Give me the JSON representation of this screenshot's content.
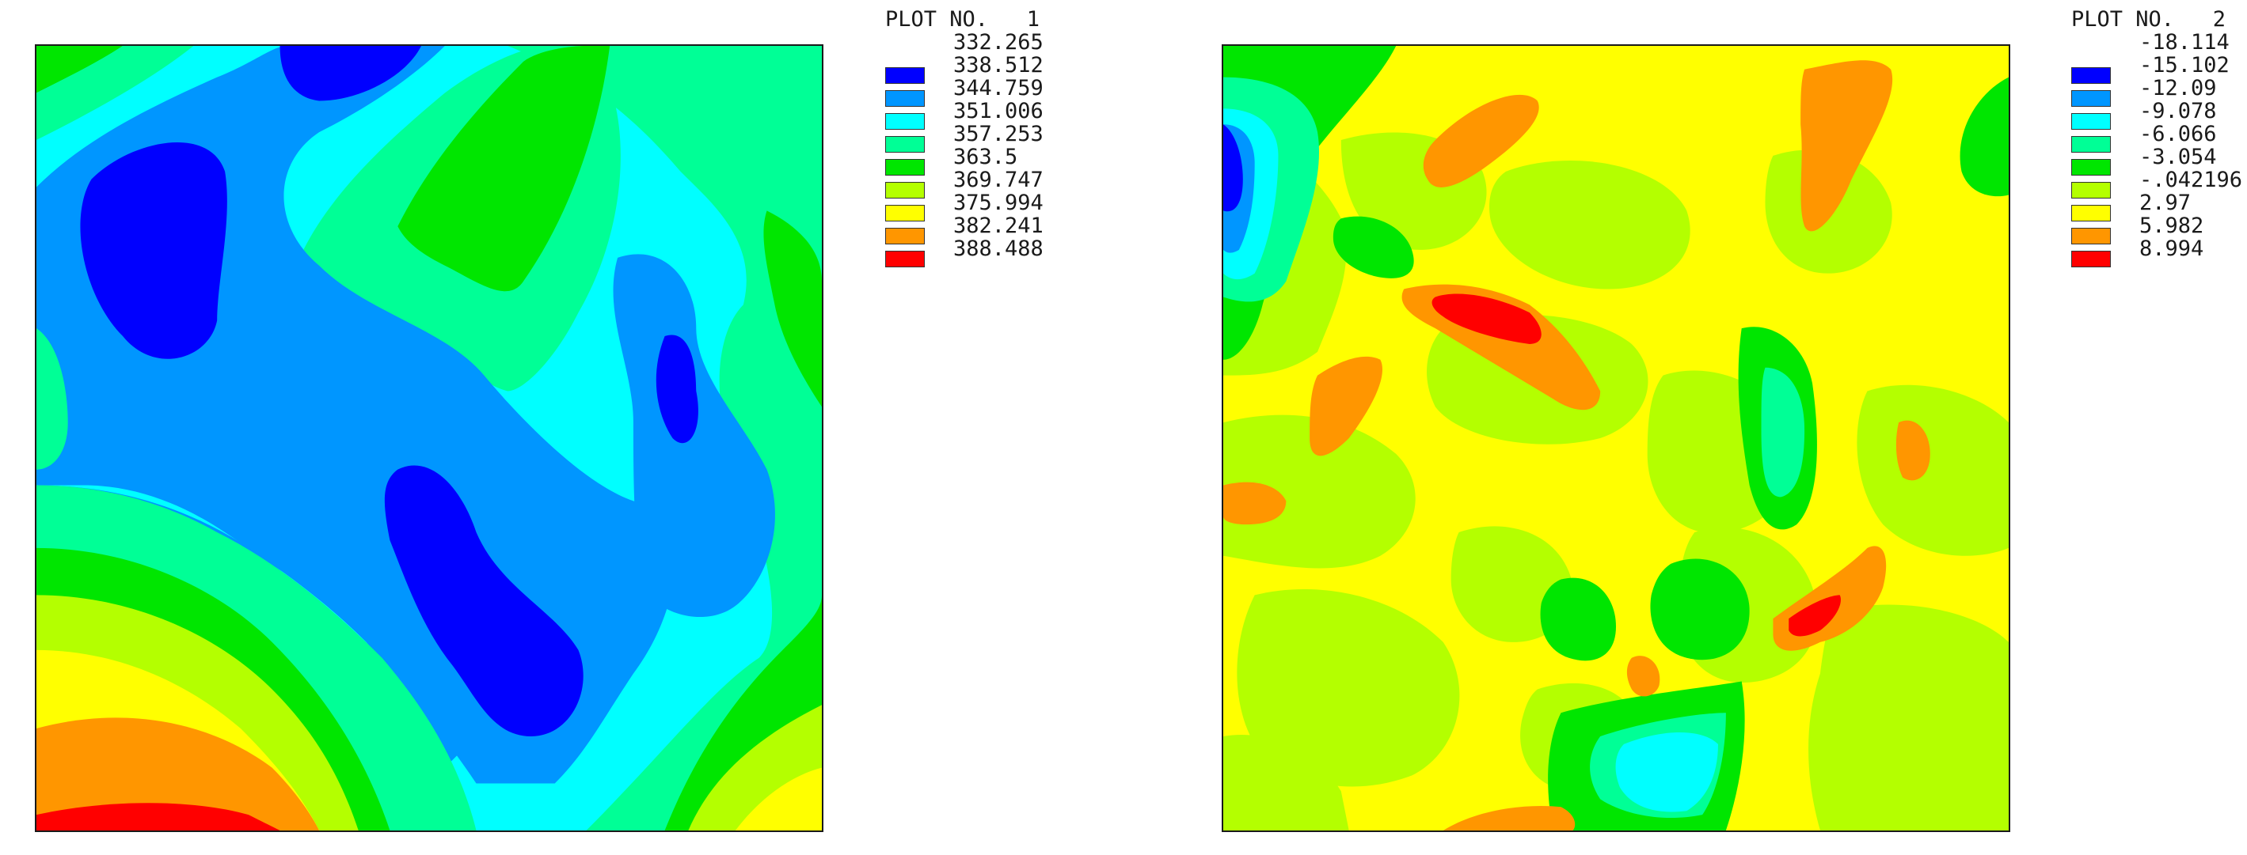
{
  "chart_data": [
    {
      "type": "heatmap",
      "plot_label": "PLOT NO.   1",
      "levels": [
        "332.265",
        "338.512",
        "344.759",
        "351.006",
        "357.253",
        "363.5",
        "369.747",
        "375.994",
        "382.241",
        "388.488"
      ],
      "colors": [
        "#0000ff",
        "#0096ff",
        "#00ffff",
        "#00ff96",
        "#00e600",
        "#b4ff00",
        "#ffff00",
        "#ff9600",
        "#ff0000"
      ]
    },
    {
      "type": "heatmap",
      "plot_label": "PLOT NO.   2",
      "levels": [
        "-18.114",
        "-15.102",
        "-12.09",
        "-9.078",
        "-6.066",
        "-3.054",
        "-.042196",
        "2.97",
        "5.982",
        "8.994"
      ],
      "colors": [
        "#0000ff",
        "#0096ff",
        "#00ffff",
        "#00ff96",
        "#00e600",
        "#b4ff00",
        "#ffff00",
        "#ff9600",
        "#ff0000"
      ]
    }
  ]
}
